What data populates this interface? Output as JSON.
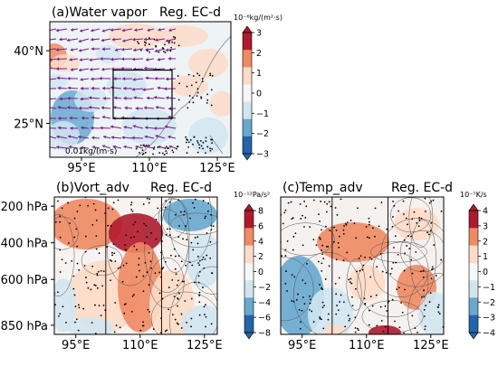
{
  "colors": {
    "neg_strong": "#2166ac",
    "neg_mid": "#67a9cf",
    "neg_light": "#d1e5f0",
    "neutral": "#f7f7f7",
    "pos_light": "#fddbc7",
    "pos_mid": "#ef8a62",
    "pos_strong": "#b2182b",
    "vector": "#7b1f8f",
    "contour": "#555555",
    "stipple": "#000000"
  },
  "chart_data": [
    {
      "type": "heatmap",
      "panel": "a",
      "title": "(a)Water vapor",
      "region_label": "Reg. EC-d",
      "x_ticks": [
        "95°E",
        "110°E",
        "125°E"
      ],
      "y_ticks": [
        "40°N",
        "25°N"
      ],
      "xlim": [
        88,
        128
      ],
      "ylim": [
        18,
        46
      ],
      "colorbar": {
        "unit": "10⁻⁶kg/(m²·s)",
        "ticks": [
          "3",
          "2",
          "1",
          "0",
          "−1",
          "−2",
          "−3"
        ],
        "range": [
          -3,
          3
        ]
      },
      "box": {
        "lon": [
          102,
          115
        ],
        "lat": [
          26,
          36
        ]
      },
      "vector_reference": "0.01kg/(m·s)",
      "overlays": [
        "wind vectors",
        "stippling",
        "coastlines"
      ]
    },
    {
      "type": "heatmap",
      "panel": "b",
      "title": "(b)Vort_adv",
      "region_label": "Reg. EC-d",
      "x_ticks": [
        "95°E",
        "110°E",
        "125°E"
      ],
      "y_ticks": [
        "200 hPa",
        "400 hPa",
        "600 hPa",
        "850 hPa"
      ],
      "xlim": [
        90,
        128
      ],
      "y_levels_hPa": [
        150,
        900
      ],
      "vertical_lines_lon": [
        102,
        115
      ],
      "colorbar": {
        "unit": "10⁻¹²Pa/s²",
        "ticks": [
          "8",
          "6",
          "4",
          "2",
          "0",
          "−2",
          "−4",
          "−6",
          "−8"
        ],
        "range": [
          -8,
          8
        ]
      },
      "overlays": [
        "contours",
        "stippling"
      ]
    },
    {
      "type": "heatmap",
      "panel": "c",
      "title": "(c)Temp_adv",
      "region_label": "Reg. EC-d",
      "x_ticks": [
        "95°E",
        "110°E",
        "125°E"
      ],
      "xlim": [
        90,
        128
      ],
      "y_levels_hPa": [
        150,
        900
      ],
      "vertical_lines_lon": [
        102,
        115
      ],
      "colorbar": {
        "unit": "10⁻⁷K/s",
        "ticks": [
          "4",
          "3",
          "2",
          "1",
          "0",
          "−1",
          "−2",
          "−3",
          "−4"
        ],
        "range": [
          -4,
          4
        ]
      },
      "overlays": [
        "contours",
        "stippling"
      ]
    }
  ]
}
